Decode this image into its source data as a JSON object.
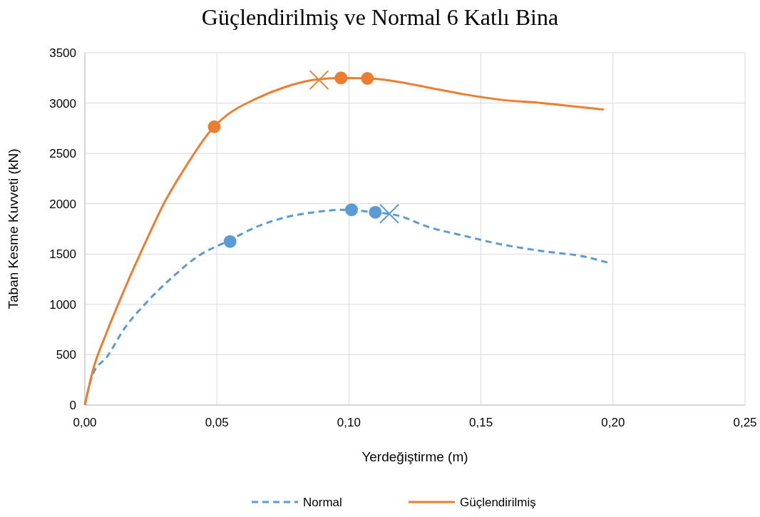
{
  "chart_data": {
    "type": "line",
    "title": "Güçlendirilmiş ve Normal 6 Katlı Bina",
    "xlabel": "Yerdeğiştirme  (m)",
    "ylabel": "Taban Kesme Kuvveti  (kN)",
    "xlim": [
      0,
      0.25
    ],
    "xticks": [
      {
        "value": 0,
        "label": "0,00"
      },
      {
        "value": 0.05,
        "label": "0,05"
      },
      {
        "value": 0.1,
        "label": "0,10"
      },
      {
        "value": 0.15,
        "label": "0,15"
      },
      {
        "value": 0.2,
        "label": "0,20"
      },
      {
        "value": 0.25,
        "label": "0,25"
      }
    ],
    "ylim": [
      0,
      3500
    ],
    "yticks": [
      0,
      500,
      1000,
      1500,
      2000,
      2500,
      3000,
      3500
    ],
    "grid": true,
    "legend": "bottom",
    "series": [
      {
        "name": "Normal",
        "color": "#5b9bd5",
        "line_style": "dashed",
        "x": [
          0,
          0.003,
          0.0084,
          0.0151,
          0.0232,
          0.0327,
          0.0435,
          0.0543,
          0.065,
          0.0759,
          0.0867,
          0.0975,
          0.108,
          0.119,
          0.13,
          0.143,
          0.157,
          0.173,
          0.189,
          0.1987
        ],
        "values": [
          0,
          305,
          480,
          765,
          1015,
          1260,
          1490,
          1630,
          1770,
          1865,
          1915,
          1940,
          1920,
          1880,
          1770,
          1685,
          1600,
          1530,
          1475,
          1410
        ]
      },
      {
        "name": "Güçlendirilmiş",
        "color": "#ed7d31",
        "line_style": "solid",
        "x": [
          0,
          0.003,
          0.0084,
          0.0151,
          0.0232,
          0.03,
          0.038,
          0.0489,
          0.0543,
          0.065,
          0.0759,
          0.0867,
          0.0975,
          0.108,
          0.119,
          0.13,
          0.143,
          0.157,
          0.173,
          0.184,
          0.1965
        ],
        "values": [
          0,
          340,
          730,
          1155,
          1630,
          2005,
          2360,
          2765,
          2890,
          3045,
          3160,
          3230,
          3250,
          3245,
          3210,
          3155,
          3090,
          3035,
          3000,
          2970,
          2935
        ]
      },
      {
        "type": "scatter",
        "marker": "circle",
        "color": "#5b9bd5",
        "x": [
          0.055,
          0.101,
          0.11
        ],
        "values": [
          1625,
          1940,
          1915
        ]
      },
      {
        "type": "scatter",
        "marker": "cross",
        "color": "#5b9bd5",
        "x": [
          0.1153
        ],
        "values": [
          1900
        ]
      },
      {
        "type": "scatter",
        "marker": "circle",
        "color": "#ed7d31",
        "x": [
          0.049,
          0.097,
          0.107
        ],
        "values": [
          2765,
          3250,
          3245
        ]
      },
      {
        "type": "scatter",
        "marker": "cross",
        "color": "#ed7d31",
        "x": [
          0.0887
        ],
        "values": [
          3230
        ]
      }
    ]
  }
}
